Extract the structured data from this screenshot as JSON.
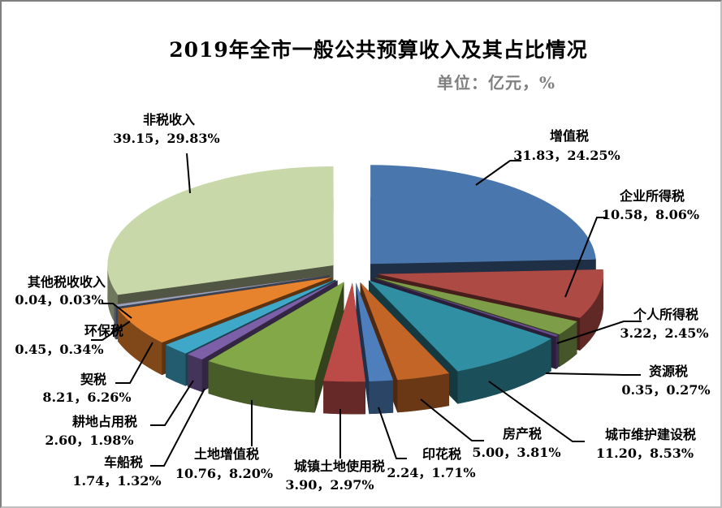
{
  "window": {
    "background": "#ffffff",
    "frame_color_topleft": "#7f7f7f",
    "frame_color_bottomright": "#bfbfbf"
  },
  "chart_data": {
    "type": "pie",
    "style": "3d-exploded",
    "title": "2019年全市一般公共预算收入及其占比情况",
    "subtitle": "单位：亿元，%",
    "title_color": "#000000",
    "subtitle_color": "#7f7f7f",
    "leader_line_color": "#000000",
    "legend_position": "none",
    "label_format": "名称 / 数值，百分比%",
    "slices": [
      {
        "label": "增值税",
        "value": "31.83",
        "percent": "24.25",
        "color": "#4A76AE"
      },
      {
        "label": "企业所得税",
        "value": "10.58",
        "percent": "8.06",
        "color": "#AE4A44"
      },
      {
        "label": "个人所得税",
        "value": "3.22",
        "percent": "2.45",
        "color": "#7E9D49"
      },
      {
        "label": "资源税",
        "value": "0.35",
        "percent": "0.27",
        "color": "#6A4D92"
      },
      {
        "label": "城市维护建设税",
        "value": "11.20",
        "percent": "8.53",
        "color": "#318FA3"
      },
      {
        "label": "房产税",
        "value": "5.00",
        "percent": "3.81",
        "color": "#C26527"
      },
      {
        "label": "印花税",
        "value": "2.24",
        "percent": "1.71",
        "color": "#4E7EBB"
      },
      {
        "label": "城镇土地使用税",
        "value": "3.90",
        "percent": "2.97",
        "color": "#BC4B47"
      },
      {
        "label": "土地增值税",
        "value": "10.76",
        "percent": "8.20",
        "color": "#82A848"
      },
      {
        "label": "车船税",
        "value": "1.74",
        "percent": "1.32",
        "color": "#7C5FA6"
      },
      {
        "label": "耕地占用税",
        "value": "2.60",
        "percent": "1.98",
        "color": "#3FA7C8"
      },
      {
        "label": "契税",
        "value": "8.21",
        "percent": "6.26",
        "color": "#E8832D"
      },
      {
        "label": "环保税",
        "value": "0.45",
        "percent": "0.34",
        "color": "#98A3C0"
      },
      {
        "label": "其他税收收入",
        "value": "0.04",
        "percent": "0.03",
        "color": "#D99694"
      },
      {
        "label": "非税收入",
        "value": "39.15",
        "percent": "29.83",
        "color": "#C9D8A8"
      }
    ]
  }
}
